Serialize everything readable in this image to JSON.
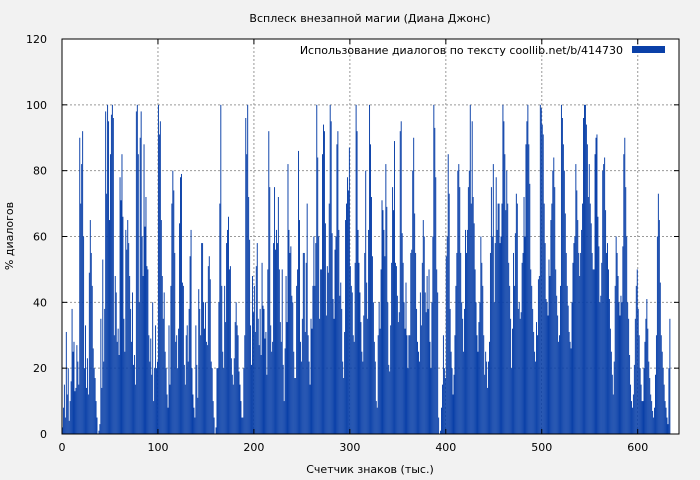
{
  "chart_data": {
    "type": "bar",
    "title": "Всплеск внезапной магии (Диана Джонс)",
    "xlabel": "Счетчик знаков (тыс.)",
    "ylabel": "% диалогов",
    "xlim": [
      0,
      643
    ],
    "ylim": [
      0,
      120
    ],
    "x_ticks": [
      0,
      100,
      200,
      300,
      400,
      500,
      600
    ],
    "y_ticks": [
      0,
      20,
      40,
      60,
      80,
      100,
      120
    ],
    "grid": true,
    "legend_position": "top-right",
    "series": [
      {
        "name": "Использование диалогов по тексту  coollib.net/b/414730",
        "color": "#0a40a8",
        "bin_width": 1,
        "values": [
          2,
          8,
          15,
          5,
          31,
          12,
          20,
          4,
          10,
          16,
          38,
          25,
          28,
          13,
          14,
          27,
          22,
          15,
          90,
          70,
          82,
          92,
          60,
          20,
          33,
          14,
          23,
          12,
          49,
          65,
          55,
          45,
          26,
          20,
          17,
          10,
          5,
          0,
          1,
          3,
          35,
          14,
          53,
          22,
          38,
          98,
          73,
          100,
          95,
          65,
          85,
          97,
          100,
          96,
          30,
          48,
          43,
          28,
          32,
          24,
          78,
          71,
          85,
          66,
          35,
          25,
          62,
          56,
          65,
          58,
          48,
          38,
          28,
          43,
          21,
          24,
          15,
          98,
          100,
          85,
          40,
          90,
          98,
          60,
          48,
          88,
          63,
          72,
          51,
          50,
          30,
          22,
          29,
          18,
          40,
          10,
          20,
          33,
          20,
          22,
          100,
          91,
          95,
          65,
          48,
          35,
          43,
          25,
          20,
          12,
          8,
          33,
          15,
          45,
          70,
          80,
          74,
          55,
          28,
          30,
          20,
          32,
          64,
          78,
          79,
          46,
          45,
          21,
          15,
          30,
          33,
          22,
          38,
          54,
          62,
          20,
          12,
          8,
          5,
          33,
          21,
          11,
          44,
          38,
          30,
          58,
          58,
          40,
          32,
          40,
          28,
          27,
          51,
          54,
          47,
          22,
          20,
          10,
          5,
          0,
          2,
          20,
          20,
          40,
          70,
          100,
          45,
          25,
          20,
          45,
          34,
          58,
          62,
          66,
          50,
          51,
          23,
          18,
          15,
          23,
          34,
          40,
          33,
          30,
          19,
          15,
          10,
          5,
          5,
          20,
          30,
          96,
          85,
          100,
          72,
          59,
          33,
          21,
          48,
          37,
          45,
          31,
          51,
          58,
          35,
          27,
          38,
          24,
          52,
          39,
          38,
          29,
          31,
          18,
          50,
          92,
          75,
          33,
          25,
          28,
          58,
          75,
          56,
          62,
          58,
          72,
          50,
          34,
          28,
          50,
          21,
          10,
          26,
          48,
          34,
          82,
          62,
          55,
          57,
          42,
          40,
          25,
          17,
          17,
          45,
          50,
          86,
          65,
          28,
          22,
          35,
          55,
          55,
          31,
          52,
          70,
          30,
          22,
          15,
          35,
          32,
          45,
          60,
          45,
          58,
          100,
          84,
          60,
          35,
          50,
          50,
          85,
          94,
          92,
          64,
          36,
          51,
          49,
          70,
          100,
          95,
          61,
          41,
          35,
          56,
          60,
          88,
          92,
          62,
          42,
          46,
          38,
          22,
          17,
          31,
          65,
          70,
          78,
          74,
          87,
          51,
          45,
          43,
          30,
          28,
          52,
          100,
          92,
          62,
          52,
          43,
          34,
          25,
          22,
          36,
          55,
          80,
          46,
          35,
          62,
          100,
          88,
          72,
          54,
          40,
          28,
          22,
          10,
          8,
          30,
          40,
          32,
          50,
          71,
          68,
          62,
          54,
          82,
          69,
          40,
          21,
          19,
          33,
          52,
          75,
          68,
          89,
          52,
          51,
          42,
          34,
          37,
          92,
          95,
          61,
          52,
          40,
          32,
          46,
          30,
          20,
          30,
          30,
          55,
          56,
          80,
          90,
          67,
          55,
          38,
          28,
          25,
          22,
          43,
          33,
          52,
          65,
          60,
          43,
          37,
          48,
          38,
          50,
          28,
          20,
          40,
          60,
          100,
          93,
          78,
          50,
          43,
          5,
          0,
          1,
          8,
          15,
          30,
          20,
          17,
          54,
          60,
          85,
          73,
          38,
          25,
          20,
          12,
          18,
          30,
          45,
          55,
          80,
          82,
          75,
          55,
          40,
          35,
          25,
          38,
          62,
          55,
          62,
          75,
          80,
          100,
          70,
          95,
          72,
          64,
          50,
          40,
          30,
          25,
          34,
          40,
          60,
          52,
          45,
          30,
          18,
          25,
          22,
          14,
          22,
          28,
          55,
          75,
          60,
          82,
          40,
          58,
          78,
          62,
          70,
          70,
          58,
          60,
          70,
          100,
          95,
          85,
          68,
          80,
          70,
          52,
          45,
          35,
          20,
          32,
          55,
          45,
          61,
          73,
          70,
          38,
          40,
          35,
          37,
          52,
          55,
          72,
          60,
          88,
          95,
          100,
          88,
          76,
          50,
          45,
          38,
          31,
          25,
          22,
          34,
          30,
          47,
          48,
          100,
          99,
          94,
          91,
          70,
          58,
          41,
          40,
          36,
          53,
          48,
          65,
          70,
          80,
          84,
          75,
          50,
          42,
          36,
          28,
          30,
          45,
          100,
          96,
          88,
          80,
          67,
          55,
          45,
          39,
          31,
          28,
          26,
          40,
          52,
          58,
          60,
          82,
          74,
          65,
          55,
          48,
          55,
          62,
          70,
          96,
          100,
          100,
          94,
          88,
          72,
          82,
          70,
          64,
          55,
          50,
          50,
          85,
          90,
          91,
          66,
          57,
          40,
          42,
          52,
          80,
          82,
          84,
          68,
          55,
          58,
          50,
          41,
          32,
          25,
          18,
          12,
          22,
          45,
          60,
          55,
          48,
          40,
          36,
          42,
          40,
          57,
          85,
          90,
          75,
          60,
          40,
          35,
          24,
          15,
          10,
          8,
          12,
          21,
          35,
          45,
          50,
          38,
          30,
          20,
          15,
          10,
          10,
          20,
          28,
          35,
          41,
          32,
          22,
          17,
          12,
          10,
          7,
          5,
          8,
          18,
          30,
          60,
          73,
          65,
          46,
          30,
          25,
          20,
          15,
          10,
          8,
          5,
          3,
          20,
          35
        ]
      }
    ]
  }
}
